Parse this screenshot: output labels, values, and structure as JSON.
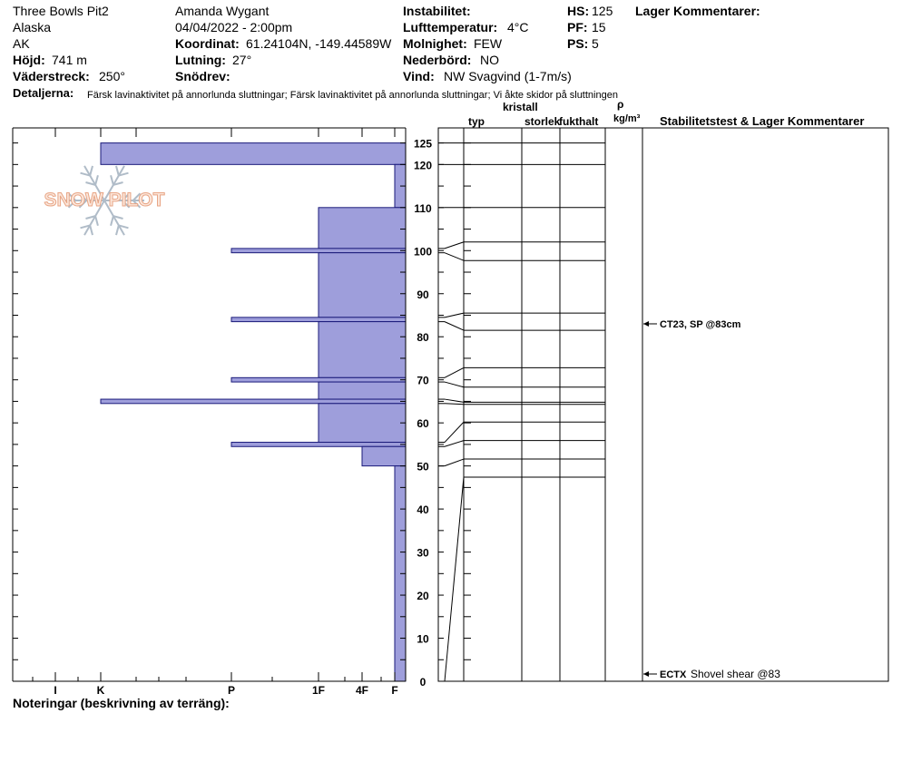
{
  "header": {
    "pit_name": "Three Bowls Pit2",
    "observer": "Amanda Wygant",
    "region": "Alaska",
    "date_time": "04/04/2022 - 2:00pm",
    "state": "AK",
    "elevation_label": "Höjd:",
    "elevation_value": "741 m",
    "aspect_label": "Väderstreck:",
    "aspect_value": "250°",
    "coord_label": "Koordinat:",
    "coord_value": "61.24104N, -149.44589W",
    "slope_label": "Lutning:",
    "slope_value": "27°",
    "wind_loading_label": "Snödrev:",
    "wind_loading_value": "",
    "instability_label": "Instabilitet:",
    "instability_value": "",
    "air_temp_label": "Lufttemperatur:",
    "air_temp_value": "4°C",
    "sky_label": "Molnighet:",
    "sky_value": "FEW",
    "precip_label": "Nederbörd:",
    "precip_value": "NO",
    "wind_label": "Vind:",
    "wind_value": "NW Svagvind (1-7m/s)",
    "hs_label": "HS:",
    "hs_value": "125",
    "pf_label": "PF:",
    "pf_value": "15",
    "ps_label": "PS:",
    "ps_value": "5",
    "layer_comments_label": "Lager Kommentarer:",
    "details_label": "Detaljerna:",
    "details_value": "Färsk lavinaktivitet på annorlunda sluttningar; Färsk lavinaktivitet på annorlunda sluttningar; Vi åkte skidor på sluttningen",
    "notes_label": "Noteringar (beskrivning av terräng):"
  },
  "logo_text": "SNOW PILOT",
  "columns": {
    "type": "typ",
    "crystal": "kristall",
    "size": "storlek",
    "moisture": "fukthalt",
    "density_symbol": "ρ",
    "density_unit": "kg/m³",
    "stability": "Stabilitetstest & Lager Kommentarer"
  },
  "colors": {
    "hardness_fill": "#9e9edb",
    "hardness_stroke": "#1a1a7a"
  },
  "chart_data": {
    "type": "bar",
    "title": "",
    "y_range": [
      0,
      125
    ],
    "y_ticks": [
      0,
      10,
      20,
      30,
      40,
      50,
      60,
      70,
      80,
      90,
      100,
      110,
      120,
      125
    ],
    "hardness_scale": [
      "I",
      "K",
      "P",
      "1F",
      "4F",
      "F"
    ],
    "hardness_scale_values": [
      5,
      4,
      3,
      2,
      1.5,
      1
    ],
    "hardness_profile": [
      {
        "top": 125,
        "bottom": 120,
        "hardness": 4
      },
      {
        "top": 120,
        "bottom": 110,
        "hardness": 1
      },
      {
        "top": 110,
        "bottom": 100.5,
        "hardness": 2
      },
      {
        "top": 100.5,
        "bottom": 99.5,
        "hardness": 3
      },
      {
        "top": 99.5,
        "bottom": 84.5,
        "hardness": 2
      },
      {
        "top": 84.5,
        "bottom": 83.5,
        "hardness": 3
      },
      {
        "top": 83.5,
        "bottom": 70.5,
        "hardness": 2
      },
      {
        "top": 70.5,
        "bottom": 69.5,
        "hardness": 3
      },
      {
        "top": 69.5,
        "bottom": 65.5,
        "hardness": 2
      },
      {
        "top": 65.5,
        "bottom": 64.5,
        "hardness": 4
      },
      {
        "top": 64.5,
        "bottom": 55.5,
        "hardness": 2
      },
      {
        "top": 55.5,
        "bottom": 54.5,
        "hardness": 3
      },
      {
        "top": 54.5,
        "bottom": 50,
        "hardness": 1.5
      },
      {
        "top": 50,
        "bottom": 0,
        "hardness": 1
      }
    ],
    "layer_boundaries": [
      {
        "depth": 125,
        "row": 125
      },
      {
        "depth": 120,
        "row": 120
      },
      {
        "depth": 110,
        "row": 110
      },
      {
        "depth": 100.5,
        "row": 102
      },
      {
        "depth": 99.5,
        "row": 97.7
      },
      {
        "depth": 84.5,
        "row": 85.5
      },
      {
        "depth": 83.5,
        "row": 81.5
      },
      {
        "depth": 70.5,
        "row": 72.8
      },
      {
        "depth": 69.5,
        "row": 68.3
      },
      {
        "depth": 65.5,
        "row": 64.8
      },
      {
        "depth": 64.5,
        "row": 64.3
      },
      {
        "depth": 55.5,
        "row": 60.2
      },
      {
        "depth": 54.5,
        "row": 55.9
      },
      {
        "depth": 50,
        "row": 51.6
      },
      {
        "depth": 0,
        "row": 47.4
      }
    ],
    "stability_tests": [
      {
        "depth": 83,
        "code": "CT23, SP @83cm",
        "comment": ""
      },
      {
        "depth": 0,
        "code": "ECTX",
        "comment": "Shovel shear @83"
      }
    ]
  }
}
